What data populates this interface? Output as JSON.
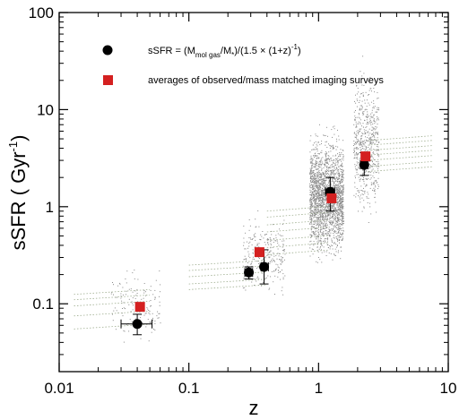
{
  "chart_data": {
    "type": "scatter",
    "xlabel": "z",
    "ylabel": "sSFR ( Gyr",
    "ylabel_sup": "-1",
    "ylabel_close": ")",
    "xscale": "log",
    "yscale": "log",
    "xlim": [
      0.01,
      10
    ],
    "ylim": [
      0.02,
      100
    ],
    "grid": false,
    "legend_position": "top-left",
    "x_ticks": [
      {
        "value": 0.01,
        "label": "0.01"
      },
      {
        "value": 0.1,
        "label": "0.1"
      },
      {
        "value": 1,
        "label": "1"
      },
      {
        "value": 10,
        "label": "10"
      }
    ],
    "y_ticks": [
      {
        "value": 0.1,
        "label": "0.1"
      },
      {
        "value": 1,
        "label": "1"
      },
      {
        "value": 10,
        "label": "10"
      },
      {
        "value": 100,
        "label": "100"
      }
    ],
    "legend": {
      "circle_label": "sSFR = (M_mol gas/M*)/(1.5 × (1+z)^-1)",
      "square_label": "averages of observed/mass matched imaging surveys"
    },
    "series": [
      {
        "name": "sSFR = (M_mol gas/M*)/(1.5 × (1+z)^-1)",
        "marker": "circle",
        "color": "#000000",
        "points": [
          {
            "x": 0.04,
            "y": 0.062,
            "xerr": [
              0.03,
              0.052
            ],
            "yerr": [
              0.048,
              0.078
            ]
          },
          {
            "x": 0.29,
            "y": 0.21,
            "xerr": [
              0.27,
              0.31
            ],
            "yerr": [
              0.18,
              0.24
            ]
          },
          {
            "x": 0.38,
            "y": 0.24,
            "xerr": [
              0.36,
              0.41
            ],
            "yerr": [
              0.16,
              0.36
            ]
          },
          {
            "x": 1.23,
            "y": 1.42,
            "xerr": [
              1.13,
              1.33
            ],
            "yerr": [
              0.9,
              2.0
            ]
          },
          {
            "x": 2.25,
            "y": 2.7,
            "xerr": [
              2.1,
              2.4
            ],
            "yerr": [
              2.1,
              3.6
            ]
          }
        ]
      },
      {
        "name": "averages of observed/mass matched imaging surveys",
        "marker": "square",
        "color": "#d42020",
        "points": [
          {
            "x": 0.042,
            "y": 0.093
          },
          {
            "x": 0.35,
            "y": 0.34
          },
          {
            "x": 1.26,
            "y": 1.22
          },
          {
            "x": 2.3,
            "y": 3.3
          }
        ]
      }
    ],
    "background_clouds": [
      {
        "x_range": [
          0.025,
          0.06
        ],
        "y_range": [
          0.03,
          0.3
        ],
        "count": 140
      },
      {
        "x_range": [
          0.26,
          0.55
        ],
        "y_range": [
          0.1,
          1.1
        ],
        "count": 260
      },
      {
        "x_range": [
          0.85,
          1.55
        ],
        "y_range": [
          0.2,
          8.0
        ],
        "count": 2200
      },
      {
        "x_range": [
          1.85,
          2.9
        ],
        "y_range": [
          0.5,
          40
        ],
        "count": 600
      }
    ]
  }
}
